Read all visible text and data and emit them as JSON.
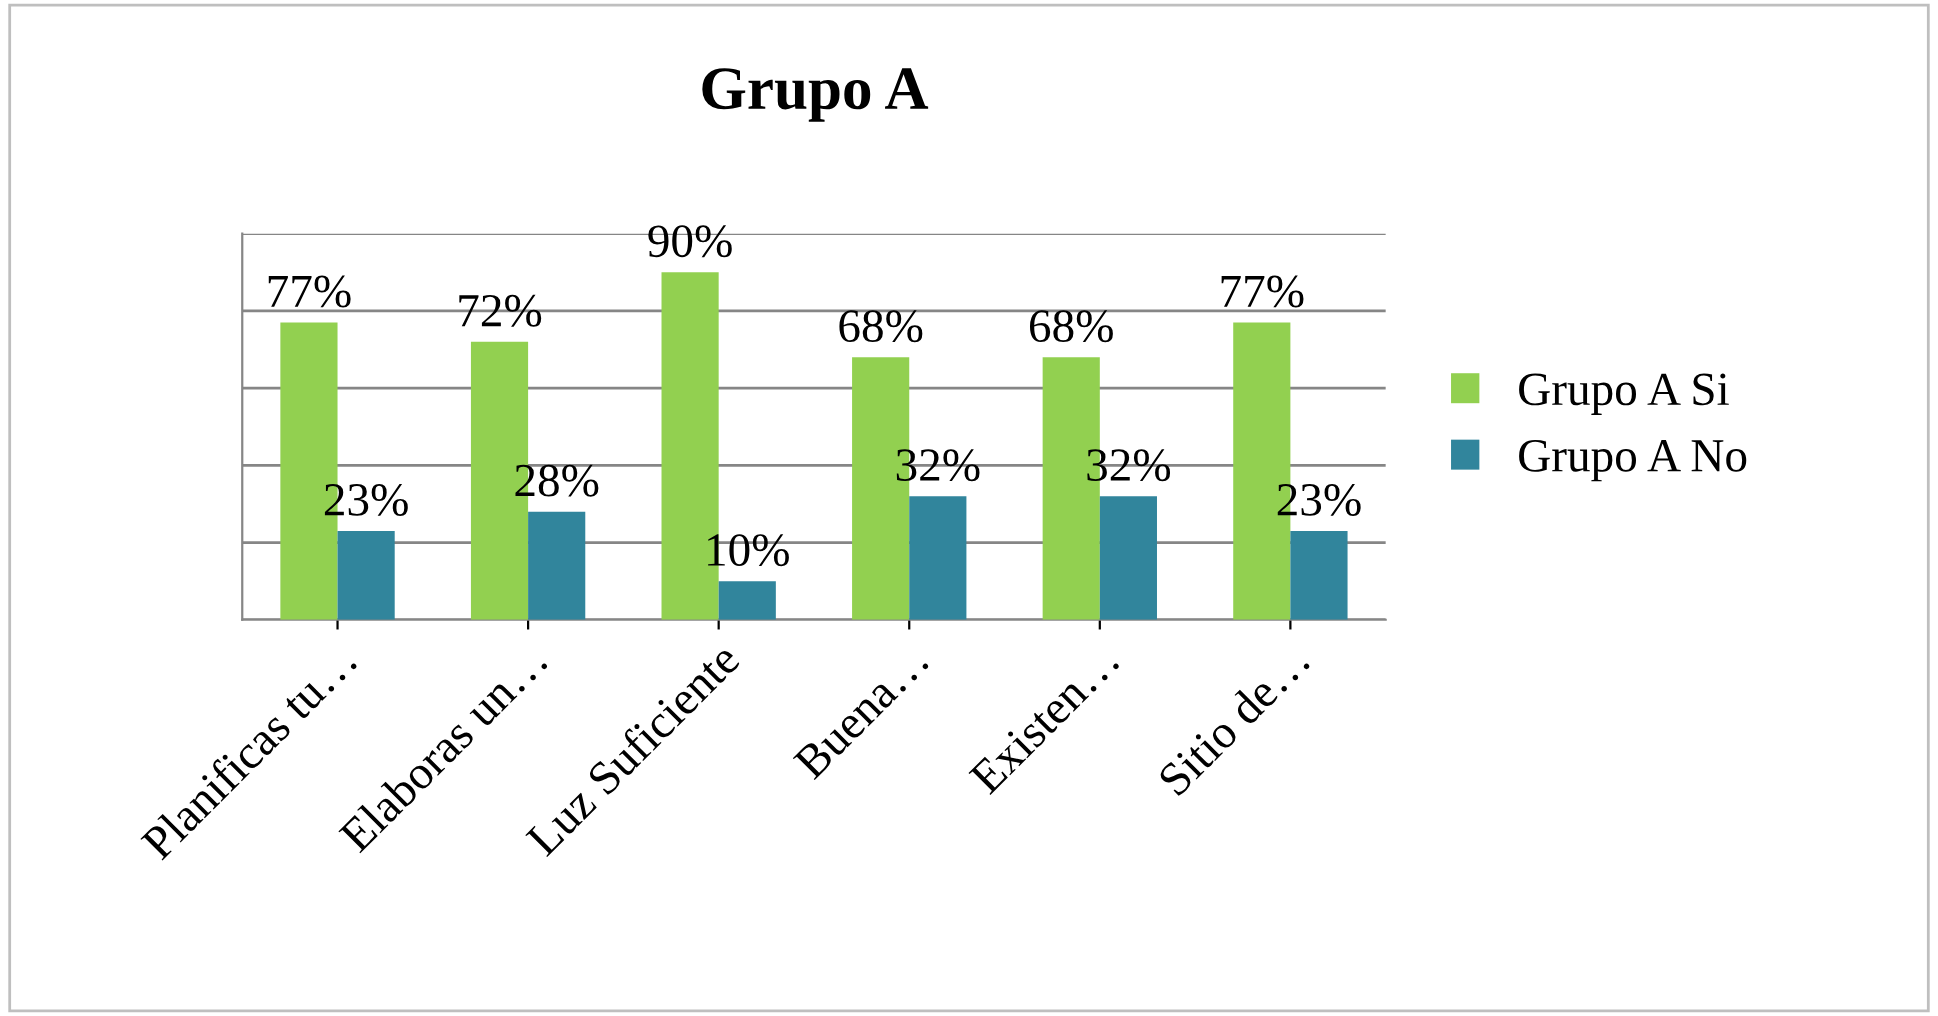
{
  "chart_data": {
    "type": "bar",
    "title": "Grupo A",
    "categories": [
      "Planificas tu…",
      "Elaboras un…",
      "Luz Suficiente",
      "Buena…",
      "Existen…",
      "Sitio de…"
    ],
    "series": [
      {
        "name": "Grupo A Si",
        "color": "#92d050",
        "values": [
          77,
          72,
          90,
          68,
          68,
          77
        ],
        "value_labels": [
          "77%",
          "72%",
          "90%",
          "68%",
          "68%",
          "77%"
        ]
      },
      {
        "name": "Grupo A No",
        "color": "#31859c",
        "values": [
          23,
          28,
          10,
          32,
          32,
          23
        ],
        "value_labels": [
          "23%",
          "28%",
          "10%",
          "32%",
          "32%",
          "23%"
        ]
      }
    ],
    "ylim": [
      0,
      100
    ],
    "yticks": [
      {
        "value": 0,
        "label": null
      },
      {
        "value": 20,
        "label": null
      },
      {
        "value": 40,
        "label": null
      },
      {
        "value": 60,
        "label": null
      },
      {
        "value": 80,
        "label": null
      },
      {
        "value": 100,
        "label": null
      }
    ],
    "grid": "y",
    "legend": "right",
    "tick_labels": "x"
  }
}
